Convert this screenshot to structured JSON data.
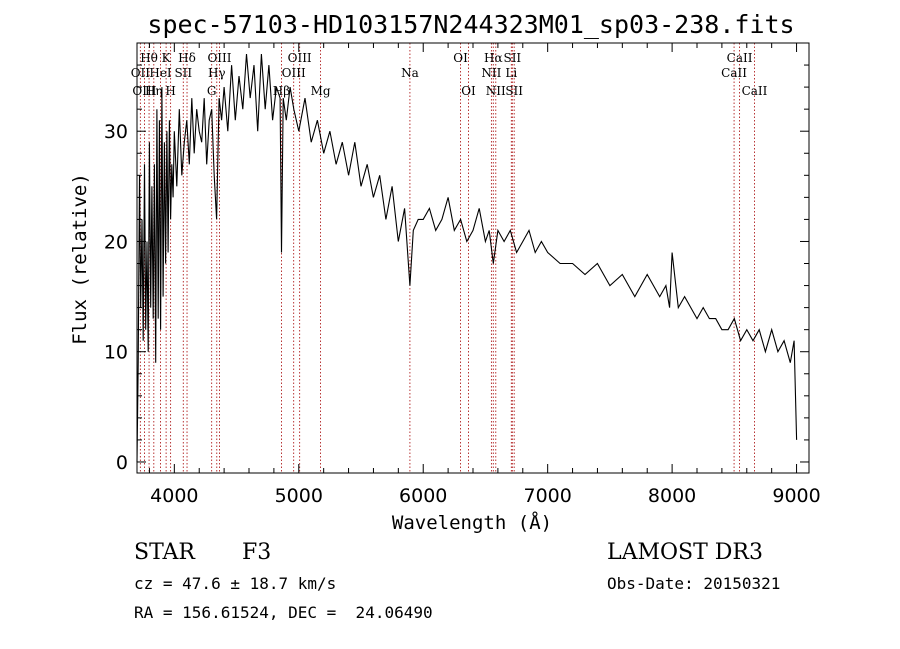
{
  "chart_data": {
    "type": "line",
    "title": "spec-57103-HD103157N244323M01_sp03-238.fits",
    "xlabel": "Wavelength (Å)",
    "ylabel": "Flux (relative)",
    "xlim": [
      3700,
      9100
    ],
    "ylim": [
      -1,
      38
    ],
    "xticks": [
      4000,
      5000,
      6000,
      7000,
      8000,
      9000
    ],
    "yticks": [
      0,
      10,
      20,
      30
    ],
    "grid": false,
    "spectral_lines": [
      {
        "name": "Hθ",
        "wavelength": 3797,
        "row": 1
      },
      {
        "name": "OII",
        "wavelength": 3727,
        "row": 2
      },
      {
        "name": "OIII",
        "wavelength": 3760,
        "row": 3
      },
      {
        "name": "Hη",
        "wavelength": 3835,
        "row": 3
      },
      {
        "name": "HeI",
        "wavelength": 3889,
        "row": 2
      },
      {
        "name": "K",
        "wavelength": 3934,
        "row": 1
      },
      {
        "name": "H",
        "wavelength": 3970,
        "row": 3
      },
      {
        "name": "SII",
        "wavelength": 4072,
        "row": 2
      },
      {
        "name": "Hδ",
        "wavelength": 4102,
        "row": 1
      },
      {
        "name": "G",
        "wavelength": 4300,
        "row": 3
      },
      {
        "name": "OIII",
        "wavelength": 4363,
        "row": 1
      },
      {
        "name": "Hγ",
        "wavelength": 4341,
        "row": 2
      },
      {
        "name": "Hβ",
        "wavelength": 4861,
        "row": 3
      },
      {
        "name": "OIII",
        "wavelength": 4959,
        "row": 2
      },
      {
        "name": "OIII",
        "wavelength": 5007,
        "row": 1
      },
      {
        "name": "Mg",
        "wavelength": 5175,
        "row": 3
      },
      {
        "name": "Na",
        "wavelength": 5893,
        "row": 2
      },
      {
        "name": "OI",
        "wavelength": 6300,
        "row": 1
      },
      {
        "name": "OI",
        "wavelength": 6364,
        "row": 3
      },
      {
        "name": "NII",
        "wavelength": 6548,
        "row": 2
      },
      {
        "name": "Hα",
        "wavelength": 6563,
        "row": 1
      },
      {
        "name": "NII",
        "wavelength": 6583,
        "row": 3
      },
      {
        "name": "Li",
        "wavelength": 6708,
        "row": 2
      },
      {
        "name": "SII",
        "wavelength": 6716,
        "row": 1
      },
      {
        "name": "SII",
        "wavelength": 6731,
        "row": 3
      },
      {
        "name": "CaII",
        "wavelength": 8498,
        "row": 2
      },
      {
        "name": "CaII",
        "wavelength": 8542,
        "row": 1
      },
      {
        "name": "CaII",
        "wavelength": 8662,
        "row": 3
      }
    ],
    "series": [
      {
        "name": "flux",
        "x": [
          3700,
          3710,
          3720,
          3730,
          3740,
          3750,
          3760,
          3770,
          3780,
          3790,
          3800,
          3810,
          3820,
          3830,
          3840,
          3850,
          3860,
          3870,
          3880,
          3890,
          3900,
          3910,
          3920,
          3930,
          3940,
          3950,
          3960,
          3970,
          3980,
          3990,
          4000,
          4020,
          4040,
          4060,
          4080,
          4100,
          4120,
          4140,
          4160,
          4180,
          4200,
          4220,
          4240,
          4260,
          4280,
          4300,
          4320,
          4340,
          4360,
          4380,
          4400,
          4430,
          4460,
          4490,
          4520,
          4550,
          4580,
          4610,
          4640,
          4670,
          4700,
          4730,
          4760,
          4790,
          4820,
          4850,
          4861,
          4875,
          4900,
          4930,
          4960,
          5000,
          5050,
          5100,
          5150,
          5200,
          5250,
          5300,
          5350,
          5400,
          5450,
          5500,
          5550,
          5600,
          5650,
          5700,
          5750,
          5800,
          5850,
          5893,
          5920,
          5960,
          6000,
          6050,
          6100,
          6150,
          6200,
          6250,
          6300,
          6350,
          6400,
          6450,
          6500,
          6530,
          6563,
          6600,
          6650,
          6700,
          6750,
          6800,
          6850,
          6900,
          6950,
          7000,
          7100,
          7200,
          7300,
          7400,
          7500,
          7600,
          7700,
          7800,
          7900,
          7950,
          7980,
          8000,
          8050,
          8100,
          8150,
          8200,
          8250,
          8300,
          8350,
          8400,
          8450,
          8500,
          8550,
          8600,
          8650,
          8700,
          8750,
          8800,
          8850,
          8900,
          8950,
          8980,
          9000
        ],
        "y": [
          0,
          9,
          26,
          14,
          22,
          11,
          27,
          12,
          20,
          10,
          29,
          14,
          25,
          13,
          27,
          9,
          32,
          13,
          31,
          12,
          34,
          15,
          29,
          18,
          30,
          19,
          31,
          22,
          27,
          24,
          30,
          25,
          32,
          26,
          29,
          31,
          27,
          33,
          28,
          32,
          30,
          29,
          33,
          27,
          31,
          32,
          26,
          22,
          33,
          31,
          34,
          30,
          36,
          31,
          35,
          32,
          37,
          33,
          36,
          30,
          37,
          32,
          36,
          31,
          34,
          33,
          19,
          33,
          31,
          34,
          32,
          30,
          33,
          29,
          31,
          28,
          30,
          27,
          29,
          26,
          29,
          25,
          27,
          24,
          26,
          22,
          25,
          20,
          23,
          16,
          21,
          22,
          22,
          23,
          21,
          22,
          24,
          21,
          22,
          20,
          21,
          23,
          20,
          21,
          18,
          21,
          20,
          21,
          19,
          20,
          21,
          19,
          20,
          19,
          18,
          18,
          17,
          18,
          16,
          17,
          15,
          17,
          15,
          16,
          14,
          19,
          14,
          15,
          14,
          13,
          14,
          13,
          13,
          12,
          12,
          13,
          11,
          12,
          11,
          12,
          10,
          12,
          10,
          11,
          9,
          11,
          2
        ]
      }
    ]
  },
  "info": {
    "object_type": "STAR",
    "subclass": "F3",
    "survey": "LAMOST DR3",
    "cz": "cz = 47.6 ± 18.7 km/s",
    "obs_date": "Obs-Date: 20150321",
    "coords": "RA = 156.61524, DEC =  24.06490"
  },
  "colors": {
    "spectrum": "#000000",
    "line_markers": "#b02020",
    "axes": "#000000"
  }
}
